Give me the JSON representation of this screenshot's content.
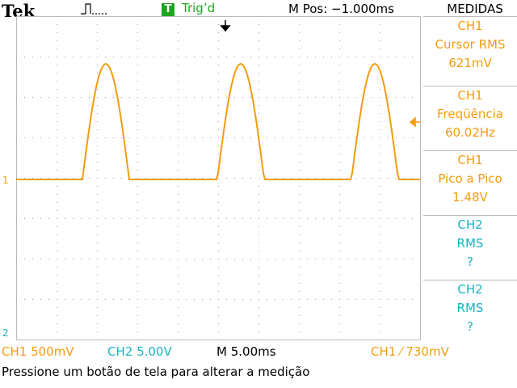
{
  "header": {
    "brand": "Tek",
    "acq_icon": "pulse-acquire-icon",
    "trigger_badge": "T",
    "trigger_state": "Trig’d",
    "main_position": "M Pos: −1.000ms"
  },
  "menu": {
    "title": "MEDIDAS",
    "items": [
      {
        "line1": "CH1",
        "line2": "Cursor RMS",
        "line3": "621mV",
        "channel": "CH1"
      },
      {
        "line1": "CH1",
        "line2": "Freqüência",
        "line3": "60.02Hz",
        "channel": "CH1"
      },
      {
        "line1": "CH1",
        "line2": "Pico a Pico",
        "line3": "1.48V",
        "channel": "CH1"
      },
      {
        "line1": "CH2",
        "line2": "RMS",
        "line3": "?",
        "channel": "CH2"
      },
      {
        "line1": "CH2",
        "line2": "RMS",
        "line3": "?",
        "channel": "CH2"
      }
    ]
  },
  "markers": {
    "ch1_ground": "1",
    "ch2_ground": "2"
  },
  "status": {
    "ch1_scale": "CH1  500mV",
    "ch2_scale": "CH2  5.00V",
    "timebase": "M 5.00ms",
    "trigger": "CH1 ⁄ 730mV"
  },
  "message": "Pressione um botão de tela para alterar a medição",
  "colors": {
    "ch1": "#f39c10",
    "ch2": "#19b3c2",
    "trigger_ok": "#1ea51e"
  }
}
